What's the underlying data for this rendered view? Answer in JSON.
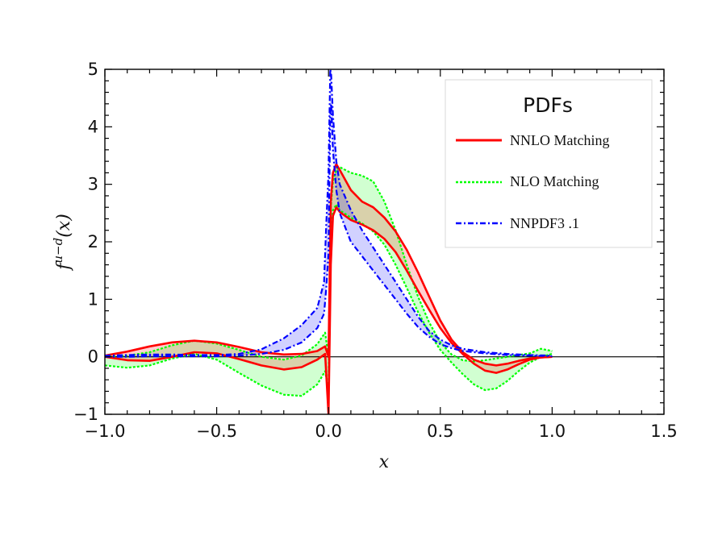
{
  "chart_data": {
    "type": "line",
    "xlabel": "x",
    "ylabel": "f u−d(x)",
    "ylabel_main": "f",
    "ylabel_sup": "u−d",
    "ylabel_arg": "(x)",
    "xlim": [
      -1.0,
      1.5
    ],
    "ylim": [
      -1,
      5
    ],
    "x_ticks": [
      -1.0,
      -0.5,
      0.0,
      0.5,
      1.0,
      1.5
    ],
    "x_tick_labels": [
      "−1.0",
      "−0.5",
      "0.0",
      "0.5",
      "1.0",
      "1.5"
    ],
    "y_ticks": [
      -1,
      0,
      1,
      2,
      3,
      4,
      5
    ],
    "y_tick_labels": [
      "−1",
      "0",
      "1",
      "2",
      "3",
      "4",
      "5"
    ],
    "grid": false,
    "zero_line": true,
    "legend": {
      "title": "PDFs",
      "position": "top-right",
      "entries": [
        {
          "label": "NNLO Matching",
          "color": "#ff0000",
          "style": "solid"
        },
        {
          "label": "NLO Matching",
          "color": "#00ff00",
          "style": "dotted"
        },
        {
          "label": "NNPDF3 .1",
          "color": "#0000ff",
          "style": "dashdot"
        }
      ]
    },
    "series": [
      {
        "name": "NNLO Matching",
        "color": "#ff0000",
        "fill": "#ff0000",
        "style": "solid",
        "upper": [
          [
            -1.0,
            0.02
          ],
          [
            -0.9,
            0.09
          ],
          [
            -0.8,
            0.18
          ],
          [
            -0.7,
            0.25
          ],
          [
            -0.6,
            0.28
          ],
          [
            -0.5,
            0.25
          ],
          [
            -0.4,
            0.17
          ],
          [
            -0.3,
            0.08
          ],
          [
            -0.2,
            0.04
          ],
          [
            -0.12,
            0.05
          ],
          [
            -0.05,
            0.1
          ],
          [
            -0.015,
            0.18
          ],
          [
            0.0,
            0.0
          ],
          [
            0.01,
            2.7
          ],
          [
            0.02,
            3.2
          ],
          [
            0.035,
            3.35
          ],
          [
            0.05,
            3.25
          ],
          [
            0.1,
            2.9
          ],
          [
            0.15,
            2.7
          ],
          [
            0.2,
            2.6
          ],
          [
            0.25,
            2.42
          ],
          [
            0.3,
            2.18
          ],
          [
            0.35,
            1.86
          ],
          [
            0.4,
            1.47
          ],
          [
            0.45,
            1.05
          ],
          [
            0.5,
            0.63
          ],
          [
            0.55,
            0.3
          ],
          [
            0.6,
            0.08
          ],
          [
            0.65,
            -0.05
          ],
          [
            0.7,
            -0.12
          ],
          [
            0.75,
            -0.15
          ],
          [
            0.8,
            -0.12
          ],
          [
            0.85,
            -0.07
          ],
          [
            0.9,
            -0.03
          ],
          [
            0.95,
            -0.01
          ],
          [
            1.0,
            0.0
          ]
        ],
        "lower": [
          [
            -1.0,
            0.0
          ],
          [
            -0.9,
            -0.06
          ],
          [
            -0.8,
            -0.07
          ],
          [
            -0.7,
            0.0
          ],
          [
            -0.6,
            0.08
          ],
          [
            -0.5,
            0.06
          ],
          [
            -0.4,
            -0.04
          ],
          [
            -0.3,
            -0.15
          ],
          [
            -0.2,
            -0.22
          ],
          [
            -0.12,
            -0.18
          ],
          [
            -0.05,
            -0.05
          ],
          [
            -0.015,
            0.05
          ],
          [
            0.0,
            -1.0
          ],
          [
            0.01,
            1.6
          ],
          [
            0.02,
            2.45
          ],
          [
            0.035,
            2.6
          ],
          [
            0.05,
            2.52
          ],
          [
            0.1,
            2.38
          ],
          [
            0.15,
            2.3
          ],
          [
            0.2,
            2.2
          ],
          [
            0.25,
            2.05
          ],
          [
            0.3,
            1.82
          ],
          [
            0.35,
            1.5
          ],
          [
            0.4,
            1.15
          ],
          [
            0.45,
            0.82
          ],
          [
            0.5,
            0.5
          ],
          [
            0.55,
            0.24
          ],
          [
            0.6,
            0.05
          ],
          [
            0.65,
            -0.12
          ],
          [
            0.7,
            -0.24
          ],
          [
            0.75,
            -0.28
          ],
          [
            0.8,
            -0.22
          ],
          [
            0.85,
            -0.13
          ],
          [
            0.9,
            -0.05
          ],
          [
            0.95,
            -0.01
          ],
          [
            1.0,
            0.0
          ]
        ]
      },
      {
        "name": "NLO Matching",
        "color": "#00ff00",
        "fill": "#00ff00",
        "style": "dotted",
        "upper": [
          [
            -1.0,
            0.0
          ],
          [
            -0.9,
            0.02
          ],
          [
            -0.8,
            0.08
          ],
          [
            -0.7,
            0.2
          ],
          [
            -0.6,
            0.28
          ],
          [
            -0.5,
            0.23
          ],
          [
            -0.4,
            0.12
          ],
          [
            -0.3,
            0.0
          ],
          [
            -0.2,
            -0.05
          ],
          [
            -0.12,
            0.02
          ],
          [
            -0.05,
            0.22
          ],
          [
            -0.015,
            0.42
          ],
          [
            0.0,
            0.0
          ],
          [
            0.01,
            2.6
          ],
          [
            0.02,
            3.05
          ],
          [
            0.035,
            3.25
          ],
          [
            0.05,
            3.3
          ],
          [
            0.1,
            3.2
          ],
          [
            0.15,
            3.15
          ],
          [
            0.2,
            3.05
          ],
          [
            0.25,
            2.7
          ],
          [
            0.3,
            2.2
          ],
          [
            0.35,
            1.6
          ],
          [
            0.4,
            1.05
          ],
          [
            0.45,
            0.6
          ],
          [
            0.5,
            0.25
          ],
          [
            0.55,
            0.04
          ],
          [
            0.6,
            -0.06
          ],
          [
            0.65,
            -0.08
          ],
          [
            0.7,
            -0.06
          ],
          [
            0.75,
            -0.03
          ],
          [
            0.8,
            0.0
          ],
          [
            0.85,
            0.03
          ],
          [
            0.9,
            0.06
          ],
          [
            0.95,
            0.14
          ],
          [
            1.0,
            0.1
          ]
        ],
        "lower": [
          [
            -1.0,
            -0.15
          ],
          [
            -0.9,
            -0.19
          ],
          [
            -0.8,
            -0.15
          ],
          [
            -0.7,
            -0.03
          ],
          [
            -0.6,
            0.05
          ],
          [
            -0.5,
            -0.05
          ],
          [
            -0.4,
            -0.28
          ],
          [
            -0.3,
            -0.5
          ],
          [
            -0.2,
            -0.66
          ],
          [
            -0.12,
            -0.68
          ],
          [
            -0.05,
            -0.48
          ],
          [
            -0.015,
            -0.25
          ],
          [
            0.0,
            -0.6
          ],
          [
            0.01,
            2.0
          ],
          [
            0.02,
            2.55
          ],
          [
            0.035,
            2.65
          ],
          [
            0.05,
            2.55
          ],
          [
            0.1,
            2.42
          ],
          [
            0.15,
            2.32
          ],
          [
            0.2,
            2.18
          ],
          [
            0.25,
            1.95
          ],
          [
            0.3,
            1.6
          ],
          [
            0.35,
            1.2
          ],
          [
            0.4,
            0.78
          ],
          [
            0.45,
            0.42
          ],
          [
            0.5,
            0.12
          ],
          [
            0.55,
            -0.1
          ],
          [
            0.6,
            -0.3
          ],
          [
            0.65,
            -0.48
          ],
          [
            0.7,
            -0.58
          ],
          [
            0.75,
            -0.55
          ],
          [
            0.8,
            -0.42
          ],
          [
            0.85,
            -0.25
          ],
          [
            0.9,
            -0.1
          ],
          [
            0.95,
            0.0
          ],
          [
            1.0,
            0.05
          ]
        ]
      },
      {
        "name": "NNPDF3 .1",
        "color": "#0000ff",
        "fill": "#0000ff",
        "style": "dashdot",
        "upper": [
          [
            -1.0,
            0.02
          ],
          [
            -0.9,
            0.03
          ],
          [
            -0.8,
            0.04
          ],
          [
            -0.7,
            0.04
          ],
          [
            -0.6,
            0.03
          ],
          [
            -0.5,
            0.03
          ],
          [
            -0.4,
            0.05
          ],
          [
            -0.3,
            0.13
          ],
          [
            -0.2,
            0.32
          ],
          [
            -0.12,
            0.55
          ],
          [
            -0.05,
            0.85
          ],
          [
            -0.02,
            1.3
          ],
          [
            -0.01,
            2.3
          ],
          [
            0.0,
            3.2
          ],
          [
            0.008,
            5.0
          ],
          [
            0.012,
            4.9
          ],
          [
            0.02,
            4.2
          ],
          [
            0.035,
            3.4
          ],
          [
            0.05,
            3.0
          ],
          [
            0.1,
            2.55
          ],
          [
            0.15,
            2.2
          ],
          [
            0.2,
            1.9
          ],
          [
            0.25,
            1.6
          ],
          [
            0.3,
            1.3
          ],
          [
            0.35,
            1.0
          ],
          [
            0.4,
            0.7
          ],
          [
            0.45,
            0.45
          ],
          [
            0.5,
            0.3
          ],
          [
            0.55,
            0.2
          ],
          [
            0.6,
            0.14
          ],
          [
            0.7,
            0.08
          ],
          [
            0.8,
            0.05
          ],
          [
            0.9,
            0.03
          ],
          [
            1.0,
            0.02
          ]
        ],
        "lower": [
          [
            -1.0,
            0.0
          ],
          [
            -0.9,
            0.0
          ],
          [
            -0.8,
            0.01
          ],
          [
            -0.7,
            0.01
          ],
          [
            -0.6,
            0.01
          ],
          [
            -0.5,
            0.01
          ],
          [
            -0.4,
            0.02
          ],
          [
            -0.3,
            0.05
          ],
          [
            -0.2,
            0.12
          ],
          [
            -0.12,
            0.25
          ],
          [
            -0.05,
            0.5
          ],
          [
            -0.02,
            0.75
          ],
          [
            -0.01,
            1.2
          ],
          [
            0.0,
            1.8
          ],
          [
            0.008,
            4.2
          ],
          [
            0.012,
            4.4
          ],
          [
            0.02,
            3.6
          ],
          [
            0.035,
            2.9
          ],
          [
            0.05,
            2.5
          ],
          [
            0.1,
            2.0
          ],
          [
            0.15,
            1.75
          ],
          [
            0.2,
            1.5
          ],
          [
            0.25,
            1.25
          ],
          [
            0.3,
            1.0
          ],
          [
            0.35,
            0.75
          ],
          [
            0.4,
            0.52
          ],
          [
            0.45,
            0.35
          ],
          [
            0.5,
            0.22
          ],
          [
            0.55,
            0.15
          ],
          [
            0.6,
            0.1
          ],
          [
            0.7,
            0.06
          ],
          [
            0.8,
            0.03
          ],
          [
            0.9,
            0.02
          ],
          [
            1.0,
            0.01
          ]
        ]
      }
    ]
  }
}
